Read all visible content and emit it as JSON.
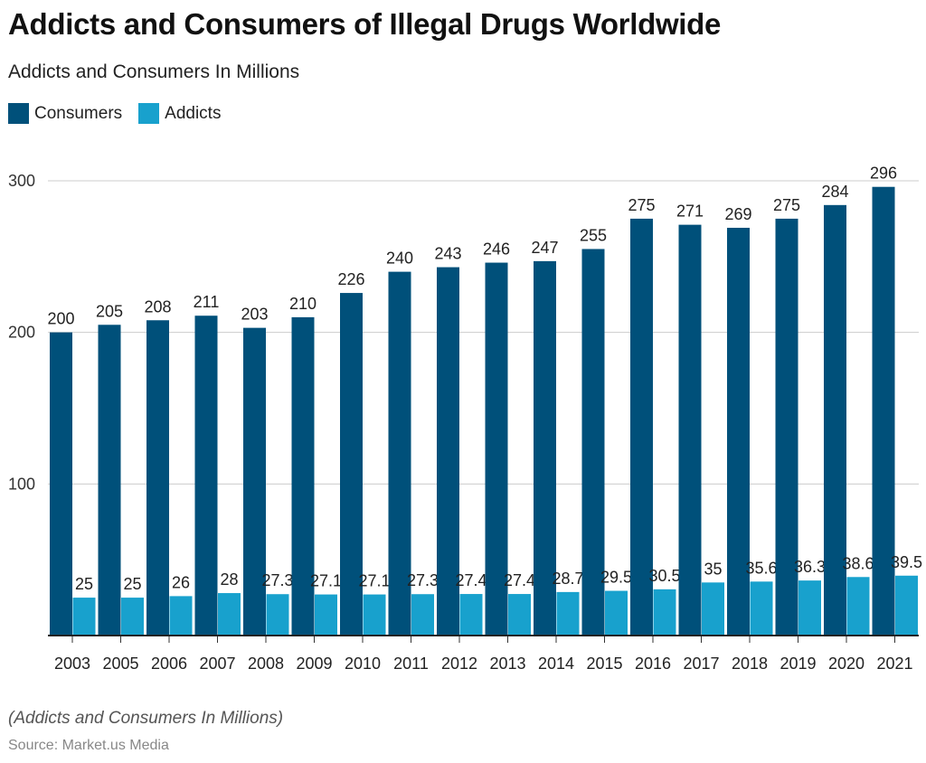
{
  "title": "Addicts and Consumers of Illegal Drugs Worldwide",
  "subtitle": "Addicts and Consumers In Millions",
  "footnote": "(Addicts and Consumers In Millions)",
  "source": "Source: Market.us Media",
  "chart_data": {
    "type": "bar",
    "categories": [
      "2003",
      "2005",
      "2006",
      "2007",
      "2008",
      "2009",
      "2010",
      "2011",
      "2012",
      "2013",
      "2014",
      "2015",
      "2016",
      "2017",
      "2018",
      "2019",
      "2020",
      "2021"
    ],
    "series": [
      {
        "name": "Consumers",
        "color": "#00507a",
        "values": [
          200,
          205,
          208,
          211,
          203,
          210,
          226,
          240,
          243,
          246,
          247,
          255,
          275,
          271,
          269,
          275,
          284,
          296
        ]
      },
      {
        "name": "Addicts",
        "color": "#18a1cd",
        "values": [
          25,
          25,
          26,
          28,
          27.3,
          27.1,
          27.1,
          27.3,
          27.4,
          27.4,
          28.7,
          29.5,
          30.5,
          35,
          35.6,
          36.3,
          38.6,
          39.5
        ]
      }
    ],
    "ylim": [
      0,
      300
    ],
    "yticks": [
      100,
      200,
      300
    ],
    "grid": true,
    "legend": "top-left",
    "xlabel": "",
    "ylabel": ""
  }
}
